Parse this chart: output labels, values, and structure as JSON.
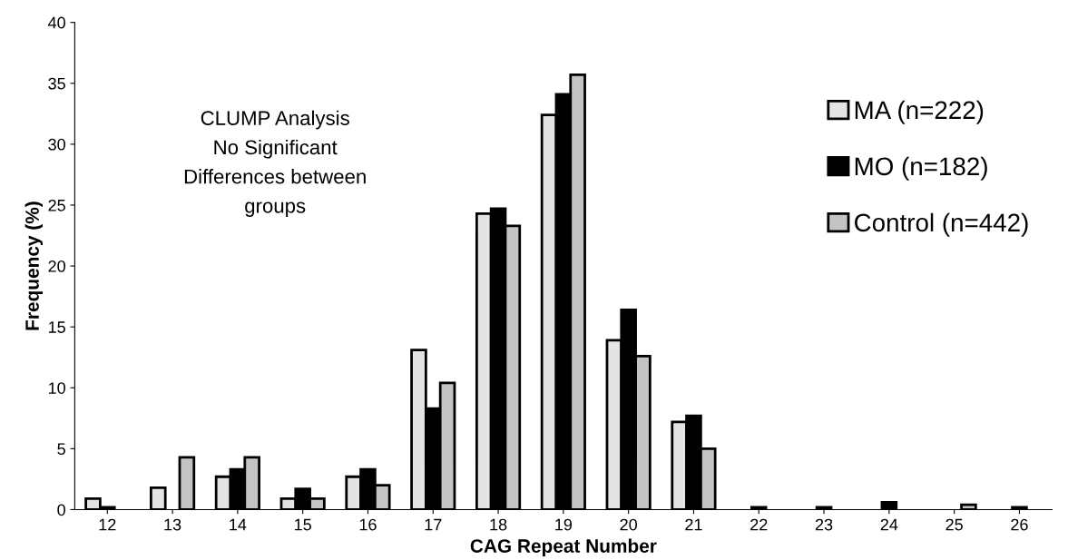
{
  "chart_data": {
    "type": "bar",
    "xlabel": "CAG Repeat Number",
    "ylabel": "Frequency (%)",
    "categories": [
      "12",
      "13",
      "14",
      "15",
      "16",
      "17",
      "18",
      "19",
      "20",
      "21",
      "22",
      "23",
      "24",
      "25",
      "26"
    ],
    "series": [
      {
        "name": "MA (n=222)",
        "color": "#e4e4e4",
        "values": [
          0.9,
          1.8,
          2.7,
          0.9,
          2.7,
          13.1,
          24.3,
          32.4,
          13.9,
          7.2,
          null,
          null,
          null,
          null,
          null
        ]
      },
      {
        "name": "MO (n=182)",
        "color": "#000000",
        "values": [
          0.2,
          null,
          3.3,
          1.7,
          3.3,
          8.3,
          24.7,
          34.1,
          16.4,
          7.7,
          0.2,
          0.2,
          0.6,
          null,
          0.2
        ]
      },
      {
        "name": "Control (n=442)",
        "color": "#c4c4c4",
        "values": [
          null,
          4.3,
          4.3,
          0.9,
          2.0,
          10.4,
          23.3,
          35.7,
          12.6,
          5.0,
          null,
          null,
          null,
          0.4,
          null
        ]
      }
    ],
    "ylim": [
      0,
      40
    ],
    "yticks": [
      0,
      5,
      10,
      15,
      20,
      25,
      30,
      35,
      40
    ],
    "grid": false,
    "legend": "right",
    "annotations": [
      "CLUMP Analysis",
      "No Significant",
      "Differences between",
      "groups"
    ]
  }
}
